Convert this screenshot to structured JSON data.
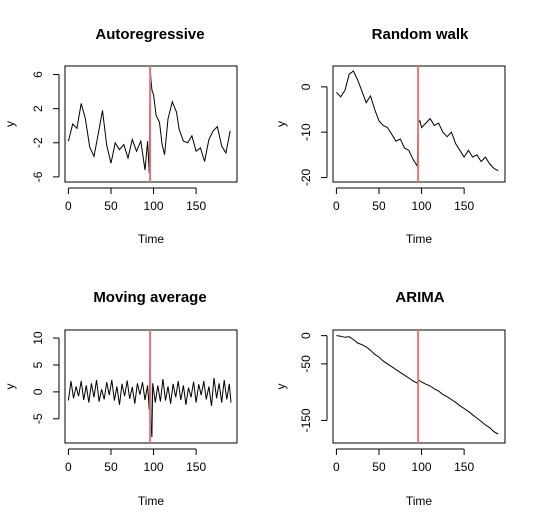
{
  "chart_data": [
    {
      "type": "line",
      "title": "Autoregressive",
      "xlabel": "Time",
      "ylabel": "y",
      "xlim": [
        -4,
        198
      ],
      "ylim": [
        -6.6,
        7.0
      ],
      "xticks": [
        0,
        50,
        100,
        150
      ],
      "yticks": [
        -6,
        -2,
        2,
        6
      ],
      "intervention_x": 96,
      "intervention_color": "#d97b7b",
      "points": [
        [
          0,
          -1.8
        ],
        [
          5,
          0.2
        ],
        [
          10,
          -0.3
        ],
        [
          15,
          2.6
        ],
        [
          20,
          0.8
        ],
        [
          25,
          -2.5
        ],
        [
          30,
          -3.6
        ],
        [
          35,
          -1.0
        ],
        [
          40,
          1.8
        ],
        [
          45,
          -2.3
        ],
        [
          50,
          -4.4
        ],
        [
          55,
          -2.0
        ],
        [
          60,
          -2.8
        ],
        [
          65,
          -2.2
        ],
        [
          70,
          -3.8
        ],
        [
          75,
          -1.6
        ],
        [
          80,
          -3.0
        ],
        [
          85,
          -1.8
        ],
        [
          90,
          -5.2
        ],
        [
          93,
          -1.8
        ],
        [
          95,
          -5.6
        ],
        [
          96,
          6.6
        ],
        [
          98,
          4.2
        ],
        [
          100,
          3.6
        ],
        [
          103,
          1.2
        ],
        [
          107,
          0.4
        ],
        [
          110,
          -2.2
        ],
        [
          113,
          -3.4
        ],
        [
          117,
          0.8
        ],
        [
          122,
          2.8
        ],
        [
          127,
          1.6
        ],
        [
          130,
          -0.4
        ],
        [
          135,
          -1.8
        ],
        [
          140,
          -2.0
        ],
        [
          145,
          -1.2
        ],
        [
          150,
          -3.0
        ],
        [
          155,
          -2.6
        ],
        [
          160,
          -4.2
        ],
        [
          165,
          -1.6
        ],
        [
          170,
          -0.6
        ],
        [
          175,
          -0.1
        ],
        [
          180,
          -2.4
        ],
        [
          185,
          -3.2
        ],
        [
          190,
          -0.6
        ]
      ]
    },
    {
      "type": "line",
      "title": "Random walk",
      "xlabel": "Time",
      "ylabel": "y",
      "xlim": [
        -4,
        198
      ],
      "ylim": [
        -21.0,
        4.6
      ],
      "xticks": [
        0,
        50,
        100,
        150
      ],
      "yticks": [
        0,
        -10,
        -20
      ],
      "intervention_x": 96,
      "intervention_color": "#d97b7b",
      "points": [
        [
          0,
          -1.2
        ],
        [
          5,
          -2.2
        ],
        [
          10,
          -0.8
        ],
        [
          15,
          2.8
        ],
        [
          20,
          3.5
        ],
        [
          25,
          1.5
        ],
        [
          30,
          -1.0
        ],
        [
          35,
          -3.5
        ],
        [
          40,
          -2.0
        ],
        [
          45,
          -5.0
        ],
        [
          50,
          -7.5
        ],
        [
          55,
          -8.5
        ],
        [
          60,
          -9.0
        ],
        [
          65,
          -10.5
        ],
        [
          70,
          -12.0
        ],
        [
          75,
          -11.5
        ],
        [
          80,
          -13.5
        ],
        [
          85,
          -14.0
        ],
        [
          90,
          -16.0
        ],
        [
          95,
          -17.5
        ],
        [
          96,
          -8.0
        ],
        [
          98,
          -7.5
        ],
        [
          100,
          -9.0
        ],
        [
          105,
          -8.0
        ],
        [
          110,
          -7.0
        ],
        [
          115,
          -8.5
        ],
        [
          120,
          -8.0
        ],
        [
          125,
          -10.0
        ],
        [
          130,
          -11.0
        ],
        [
          135,
          -10.0
        ],
        [
          140,
          -12.5
        ],
        [
          145,
          -14.0
        ],
        [
          150,
          -15.5
        ],
        [
          155,
          -14.0
        ],
        [
          160,
          -15.5
        ],
        [
          165,
          -15.0
        ],
        [
          170,
          -16.5
        ],
        [
          175,
          -15.5
        ],
        [
          180,
          -17.0
        ],
        [
          185,
          -18.0
        ],
        [
          190,
          -18.5
        ]
      ]
    },
    {
      "type": "line",
      "title": "Moving average",
      "xlabel": "Time",
      "ylabel": "y",
      "xlim": [
        -4,
        198
      ],
      "ylim": [
        -9.5,
        11.5
      ],
      "xticks": [
        0,
        50,
        100,
        150
      ],
      "yticks": [
        -5,
        0,
        5,
        10
      ],
      "intervention_x": 96,
      "intervention_color": "#d97b7b",
      "points": [
        [
          0,
          -1.6
        ],
        [
          3,
          2.0
        ],
        [
          6,
          -1.2
        ],
        [
          9,
          1.0
        ],
        [
          12,
          -0.8
        ],
        [
          15,
          2.0
        ],
        [
          18,
          -1.5
        ],
        [
          21,
          1.2
        ],
        [
          24,
          -2.0
        ],
        [
          27,
          1.6
        ],
        [
          30,
          -1.0
        ],
        [
          33,
          2.2
        ],
        [
          36,
          -1.8
        ],
        [
          39,
          0.5
        ],
        [
          42,
          -1.4
        ],
        [
          45,
          1.8
        ],
        [
          48,
          -0.6
        ],
        [
          51,
          2.2
        ],
        [
          54,
          -1.6
        ],
        [
          57,
          1.0
        ],
        [
          60,
          -2.4
        ],
        [
          63,
          1.5
        ],
        [
          66,
          -0.8
        ],
        [
          69,
          2.1
        ],
        [
          72,
          -1.3
        ],
        [
          75,
          0.9
        ],
        [
          78,
          -2.2
        ],
        [
          81,
          1.6
        ],
        [
          84,
          -0.5
        ],
        [
          87,
          1.8
        ],
        [
          90,
          -1.5
        ],
        [
          93,
          1.2
        ],
        [
          95,
          -3.4
        ],
        [
          96,
          10.8
        ],
        [
          97,
          -6.2
        ],
        [
          98,
          -8.4
        ],
        [
          99,
          1.6
        ],
        [
          102,
          -2.0
        ],
        [
          105,
          1.2
        ],
        [
          108,
          -1.8
        ],
        [
          111,
          2.4
        ],
        [
          114,
          -1.6
        ],
        [
          117,
          1.0
        ],
        [
          120,
          -2.2
        ],
        [
          123,
          1.5
        ],
        [
          126,
          -1.0
        ],
        [
          129,
          2.0
        ],
        [
          132,
          -1.5
        ],
        [
          135,
          1.2
        ],
        [
          138,
          -2.4
        ],
        [
          141,
          0.8
        ],
        [
          144,
          -1.0
        ],
        [
          147,
          1.9
        ],
        [
          150,
          -2.0
        ],
        [
          153,
          1.4
        ],
        [
          156,
          -0.6
        ],
        [
          159,
          2.0
        ],
        [
          162,
          -1.4
        ],
        [
          165,
          1.0
        ],
        [
          168,
          -2.6
        ],
        [
          171,
          2.6
        ],
        [
          174,
          -1.2
        ],
        [
          177,
          1.6
        ],
        [
          180,
          -2.0
        ],
        [
          183,
          2.2
        ],
        [
          186,
          -1.4
        ],
        [
          189,
          1.5
        ],
        [
          191,
          -2.0
        ]
      ]
    },
    {
      "type": "line",
      "title": "ARIMA",
      "xlabel": "Time",
      "ylabel": "y",
      "xlim": [
        -4,
        198
      ],
      "ylim": [
        -190,
        10
      ],
      "xticks": [
        0,
        50,
        100,
        150
      ],
      "yticks": [
        0,
        -50,
        -150
      ],
      "intervention_x": 96,
      "intervention_color": "#d97b7b",
      "points": [
        [
          0,
          0
        ],
        [
          5,
          -1
        ],
        [
          10,
          -3
        ],
        [
          15,
          -2
        ],
        [
          20,
          -7
        ],
        [
          25,
          -13
        ],
        [
          30,
          -16
        ],
        [
          35,
          -20
        ],
        [
          40,
          -26
        ],
        [
          45,
          -33
        ],
        [
          50,
          -38
        ],
        [
          55,
          -45
        ],
        [
          60,
          -50
        ],
        [
          65,
          -55
        ],
        [
          70,
          -60
        ],
        [
          75,
          -65
        ],
        [
          80,
          -70
        ],
        [
          85,
          -75
        ],
        [
          90,
          -80
        ],
        [
          95,
          -84
        ],
        [
          96,
          -78
        ],
        [
          100,
          -82
        ],
        [
          105,
          -86
        ],
        [
          110,
          -89
        ],
        [
          115,
          -94
        ],
        [
          120,
          -98
        ],
        [
          125,
          -104
        ],
        [
          130,
          -108
        ],
        [
          135,
          -113
        ],
        [
          140,
          -118
        ],
        [
          145,
          -124
        ],
        [
          150,
          -129
        ],
        [
          155,
          -134
        ],
        [
          160,
          -140
        ],
        [
          165,
          -146
        ],
        [
          170,
          -152
        ],
        [
          175,
          -158
        ],
        [
          180,
          -163
        ],
        [
          185,
          -170
        ],
        [
          190,
          -174
        ]
      ]
    }
  ]
}
